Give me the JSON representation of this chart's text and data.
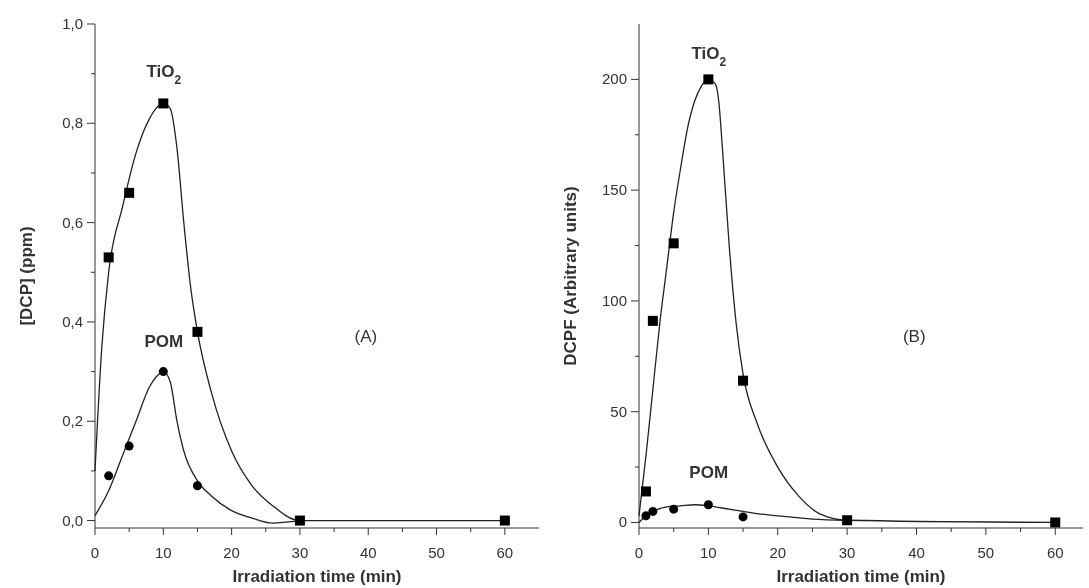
{
  "chart_data": [
    {
      "type": "scatter",
      "xlabel": "Irradiation time (min)",
      "ylabel": "[DCP] (ppm)",
      "xlim": [
        0,
        65
      ],
      "ylim": [
        -0.015,
        1.0
      ],
      "xticks": [
        0,
        {
          "value": 5,
          "label": null
        },
        10,
        {
          "value": 15,
          "label": null
        },
        20,
        {
          "value": 25,
          "label": null
        },
        30,
        {
          "value": 35,
          "label": null
        },
        40,
        {
          "value": 45,
          "label": null
        },
        50,
        {
          "value": 55,
          "label": null
        },
        60
      ],
      "yticks": [
        {
          "value": 0,
          "label": "0,0"
        },
        {
          "value": 0.1,
          "label": null
        },
        {
          "value": 0.2,
          "label": "0,2"
        },
        {
          "value": 0.3,
          "label": null
        },
        {
          "value": 0.4,
          "label": "0,4"
        },
        {
          "value": 0.5,
          "label": null
        },
        {
          "value": 0.6,
          "label": "0,6"
        },
        {
          "value": 0.7,
          "label": null
        },
        {
          "value": 0.8,
          "label": "0,8"
        },
        {
          "value": 0.9,
          "label": null
        },
        {
          "value": 1.0,
          "label": "1,0"
        }
      ],
      "series": [
        {
          "type": "scatter",
          "marker": "square",
          "color": "#000000",
          "x": [
            2,
            5,
            10,
            15,
            30,
            60
          ],
          "values": [
            0.53,
            0.66,
            0.84,
            0.38,
            0,
            0
          ]
        },
        {
          "type": "scatter",
          "marker": "circle",
          "color": "#000000",
          "x": [
            2,
            5,
            10,
            15
          ],
          "values": [
            0.09,
            0.15,
            0.3,
            0.07
          ]
        },
        {
          "type": "line",
          "marker": "none",
          "color": "#222222",
          "x": [
            0,
            1,
            2,
            4,
            6,
            8,
            10,
            11,
            12,
            13,
            14,
            15,
            17,
            20,
            23,
            26,
            30,
            60
          ],
          "values": [
            0.1,
            0.35,
            0.5,
            0.63,
            0.74,
            0.81,
            0.84,
            0.83,
            0.75,
            0.6,
            0.47,
            0.38,
            0.26,
            0.14,
            0.07,
            0.03,
            0,
            0
          ]
        },
        {
          "type": "line",
          "marker": "none",
          "color": "#222222",
          "x": [
            0,
            2,
            4,
            6,
            8,
            9,
            10,
            11,
            12,
            13,
            15,
            17,
            20,
            23,
            26,
            28,
            30
          ],
          "values": [
            0.01,
            0.06,
            0.13,
            0.2,
            0.27,
            0.29,
            0.3,
            0.28,
            0.2,
            0.14,
            0.08,
            0.05,
            0.02,
            0.005,
            -0.005,
            -0.003,
            0
          ]
        }
      ],
      "annotations": [
        "TiO$_{2}$",
        "POM",
        "(A)"
      ]
    },
    {
      "type": "scatter",
      "xlabel": "Irradiation time (min)",
      "ylabel": "DCPF (Arbitrary units)",
      "xlim": [
        0,
        64
      ],
      "ylim": [
        -2.5,
        225
      ],
      "xticks": [
        0,
        {
          "value": 5,
          "label": null
        },
        10,
        {
          "value": 15,
          "label": null
        },
        20,
        {
          "value": 25,
          "label": null
        },
        30,
        {
          "value": 35,
          "label": null
        },
        40,
        {
          "value": 45,
          "label": null
        },
        50,
        {
          "value": 55,
          "label": null
        },
        60
      ],
      "yticks": [
        0,
        {
          "value": 25,
          "label": null
        },
        50,
        {
          "value": 75,
          "label": null
        },
        100,
        {
          "value": 125,
          "label": null
        },
        150,
        {
          "value": 175,
          "label": null
        },
        200
      ],
      "series": [
        {
          "type": "scatter",
          "marker": "square",
          "color": "#000000",
          "x": [
            1,
            2,
            5,
            10,
            15,
            30,
            60
          ],
          "values": [
            14,
            91,
            126,
            200,
            64,
            1,
            0
          ]
        },
        {
          "type": "scatter",
          "marker": "circle",
          "color": "#000000",
          "x": [
            1,
            2,
            5,
            10,
            15
          ],
          "values": [
            3,
            5,
            6,
            8,
            2.5
          ]
        },
        {
          "type": "line",
          "marker": "none",
          "color": "#222222",
          "x": [
            0,
            1,
            2,
            3,
            4,
            5,
            6,
            7,
            8,
            9,
            10,
            11,
            11.5,
            12,
            13,
            14,
            15,
            17,
            20,
            23,
            26,
            30,
            60
          ],
          "values": [
            3,
            30,
            60,
            90,
            115,
            140,
            160,
            178,
            190,
            197,
            200,
            198,
            190,
            170,
            125,
            90,
            67,
            45,
            25,
            12,
            4,
            1,
            0
          ]
        },
        {
          "type": "line",
          "marker": "none",
          "color": "#222222",
          "x": [
            0,
            1,
            2,
            4,
            6,
            8,
            10,
            13,
            17,
            20,
            25,
            30
          ],
          "values": [
            0,
            3,
            5,
            7,
            7.5,
            8,
            7.5,
            6,
            4,
            3,
            1.5,
            1
          ]
        }
      ],
      "annotations": [
        "TiO$_{2}$",
        "POM",
        "(B)"
      ]
    }
  ]
}
